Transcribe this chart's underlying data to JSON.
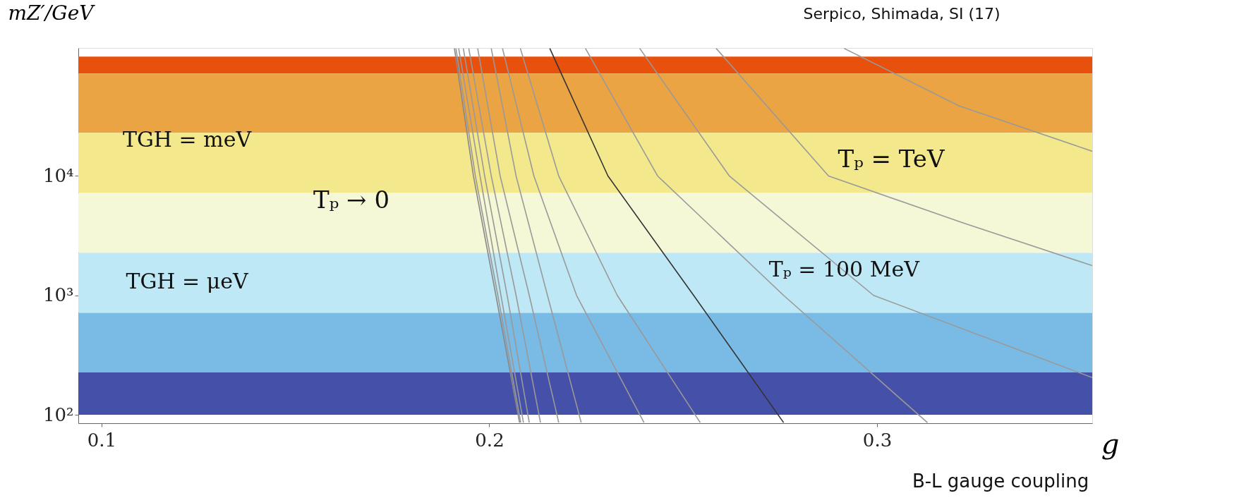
{
  "chart_data": {
    "type": "line",
    "xlabel": "g",
    "ylabel": "mZ′/GeV",
    "xlim": [
      0.094,
      0.3555
    ],
    "ylim": [
      85,
      118000
    ],
    "log": "y",
    "grid": false,
    "xticks": [
      {
        "value": 0.1,
        "label": "0.1"
      },
      {
        "value": 0.2,
        "label": "0.2"
      },
      {
        "value": 0.3,
        "label": "0.3"
      }
    ],
    "yticks": [
      {
        "value": 100,
        "label": "10²"
      },
      {
        "value": 1000,
        "label": "10³"
      },
      {
        "value": 10000,
        "label": "10⁴"
      }
    ],
    "bands": [
      {
        "axis": "y",
        "from": 72000,
        "to": 100000,
        "color": "#e8500e"
      },
      {
        "axis": "y",
        "from": 23000,
        "to": 72000,
        "color": "#eba444"
      },
      {
        "axis": "y",
        "from": 7200,
        "to": 23000,
        "color": "#f3e88c"
      },
      {
        "axis": "y",
        "from": 2270,
        "to": 7200,
        "color": "#f4f8d6"
      },
      {
        "axis": "y",
        "from": 714,
        "to": 2270,
        "color": "#bee8f5"
      },
      {
        "axis": "y",
        "from": 226,
        "to": 714,
        "color": "#7abbe6"
      },
      {
        "axis": "y",
        "from": 100,
        "to": 226,
        "color": "#4550a8"
      }
    ],
    "series": [
      {
        "color": "#888888",
        "x": [
          0.191,
          0.1959,
          0.2017,
          0.2078
        ],
        "values": [
          117000,
          10000,
          1000,
          86
        ]
      },
      {
        "color": "#999999",
        "x": [
          0.1914,
          0.1964,
          0.2022,
          0.2081
        ],
        "values": [
          117000,
          10000,
          1000,
          86
        ]
      },
      {
        "color": "#999999",
        "x": [
          0.1921,
          0.1976,
          0.203,
          0.2088
        ],
        "values": [
          117000,
          10000,
          1000,
          86
        ]
      },
      {
        "color": "#999999",
        "x": [
          0.1933,
          0.1988,
          0.2046,
          0.2103
        ],
        "values": [
          117000,
          10000,
          1000,
          86
        ]
      },
      {
        "color": "#999999",
        "x": [
          0.1947,
          0.2005,
          0.2069,
          0.2132
        ],
        "values": [
          117000,
          10000,
          1000,
          86
        ]
      },
      {
        "color": "#999999",
        "x": [
          0.197,
          0.2028,
          0.2103,
          0.2179
        ],
        "values": [
          117000,
          10000,
          1000,
          86
        ]
      },
      {
        "color": "#999999",
        "x": [
          0.2005,
          0.2069,
          0.215,
          0.2237
        ],
        "values": [
          117000,
          10000,
          1000,
          86
        ]
      },
      {
        "color": "#999999",
        "x": [
          0.2034,
          0.2115,
          0.2225,
          0.2399
        ],
        "values": [
          117000,
          10000,
          1000,
          86
        ]
      },
      {
        "color": "#999999",
        "x": [
          0.208,
          0.2179,
          0.233,
          0.2544
        ],
        "values": [
          117000,
          10000,
          1000,
          86
        ]
      },
      {
        "color": "#333333",
        "x": [
          0.2156,
          0.2306,
          0.2527,
          0.2759
        ],
        "values": [
          117000,
          10000,
          1000,
          86
        ]
      },
      {
        "color": "#999999",
        "x": [
          0.2248,
          0.2434,
          0.2759,
          0.313
        ],
        "values": [
          117000,
          10000,
          1000,
          86
        ]
      },
      {
        "color": "#999999",
        "x": [
          0.2388,
          0.2619,
          0.2991,
          0.3555
        ],
        "values": [
          117000,
          10000,
          1000,
          205
        ]
      },
      {
        "color": "#999999",
        "x": [
          0.2585,
          0.2875,
          0.3222,
          0.3555
        ],
        "values": [
          117000,
          10000,
          4040,
          1775
        ]
      },
      {
        "color": "#999999",
        "x": [
          0.2915,
          0.3211,
          0.3555
        ],
        "values": [
          117000,
          38700,
          16100
        ]
      }
    ],
    "annotations": [
      "TGH = meV",
      "TGH = μeV",
      "Tₚ → 0",
      "Tₚ = TeV",
      {
        "text": "Tₚ = 100 MeV",
        "x": 0.2915,
        "y": 1630
      },
      "Serpico, Shimada, SI (17)",
      "B-L gauge coupling"
    ]
  }
}
